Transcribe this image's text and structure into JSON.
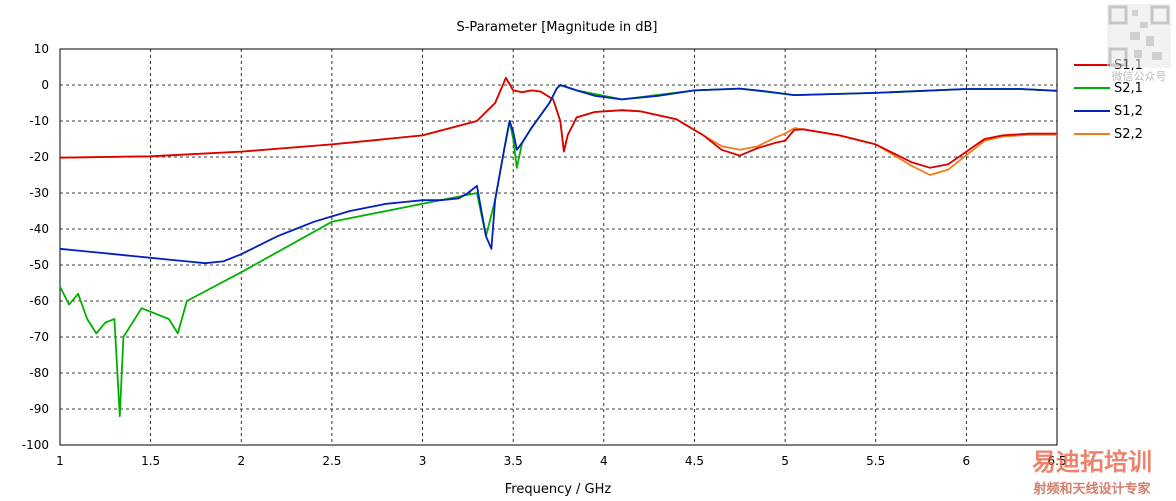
{
  "chart_data": {
    "type": "line",
    "title": "S-Parameter [Magnitude in dB]",
    "xlabel": "Frequency / GHz",
    "ylabel": "",
    "xlim": [
      1,
      6.5
    ],
    "ylim": [
      -100,
      10
    ],
    "x_ticks": [
      "1",
      "1.5",
      "2",
      "2.5",
      "3",
      "3.5",
      "4",
      "4.5",
      "5",
      "5.5",
      "6",
      "6.5"
    ],
    "y_ticks": [
      "10",
      "0",
      "-10",
      "-20",
      "-30",
      "-40",
      "-50",
      "-60",
      "-70",
      "-80",
      "-90",
      "-100"
    ],
    "grid": true,
    "legend_position": "right",
    "series": [
      {
        "name": "S1,1",
        "color": "#dd0000",
        "points": [
          [
            1,
            -20.2
          ],
          [
            1.5,
            -19.8
          ],
          [
            2,
            -18.5
          ],
          [
            2.5,
            -16.5
          ],
          [
            3,
            -14
          ],
          [
            3.3,
            -10
          ],
          [
            3.4,
            -5
          ],
          [
            3.46,
            2
          ],
          [
            3.5,
            -1.5
          ],
          [
            3.55,
            -2
          ],
          [
            3.6,
            -1.5
          ],
          [
            3.65,
            -1.8
          ],
          [
            3.72,
            -4
          ],
          [
            3.76,
            -10
          ],
          [
            3.78,
            -18.5
          ],
          [
            3.8,
            -14
          ],
          [
            3.85,
            -9
          ],
          [
            3.95,
            -7.5
          ],
          [
            4.1,
            -7
          ],
          [
            4.2,
            -7.3
          ],
          [
            4.4,
            -9.5
          ],
          [
            4.55,
            -14
          ],
          [
            4.65,
            -18
          ],
          [
            4.75,
            -19.6
          ],
          [
            4.85,
            -17.5
          ],
          [
            4.95,
            -16
          ],
          [
            5.0,
            -15.5
          ],
          [
            5.05,
            -12.5
          ],
          [
            5.1,
            -12.3
          ],
          [
            5.3,
            -14
          ],
          [
            5.5,
            -16.5
          ],
          [
            5.6,
            -19
          ],
          [
            5.7,
            -21.5
          ],
          [
            5.8,
            -23
          ],
          [
            5.9,
            -22
          ],
          [
            6.0,
            -18.5
          ],
          [
            6.1,
            -15
          ],
          [
            6.2,
            -14
          ],
          [
            6.35,
            -13.5
          ],
          [
            6.5,
            -13.5
          ]
        ]
      },
      {
        "name": "S2,1",
        "color": "#00b000",
        "points": [
          [
            1,
            -56
          ],
          [
            1.05,
            -61
          ],
          [
            1.1,
            -58
          ],
          [
            1.15,
            -65
          ],
          [
            1.2,
            -69
          ],
          [
            1.25,
            -66
          ],
          [
            1.3,
            -65
          ],
          [
            1.33,
            -92
          ],
          [
            1.35,
            -70
          ],
          [
            1.45,
            -62
          ],
          [
            1.6,
            -65
          ],
          [
            1.65,
            -69
          ],
          [
            1.7,
            -60
          ],
          [
            2,
            -52
          ],
          [
            2.5,
            -38
          ],
          [
            3,
            -33
          ],
          [
            3.3,
            -30
          ],
          [
            3.35,
            -42
          ],
          [
            3.4,
            -32
          ],
          [
            3.45,
            -18
          ],
          [
            3.48,
            -10
          ],
          [
            3.5,
            -15
          ],
          [
            3.52,
            -23
          ],
          [
            3.55,
            -16
          ],
          [
            3.6,
            -12
          ],
          [
            3.7,
            -5
          ],
          [
            3.74,
            -1
          ],
          [
            3.76,
            0
          ],
          [
            3.85,
            -1.5
          ],
          [
            4.1,
            -4
          ],
          [
            4.5,
            -1.5
          ],
          [
            4.75,
            -1
          ],
          [
            5.05,
            -2.8
          ],
          [
            5.5,
            -2.2
          ],
          [
            6.0,
            -1.1
          ],
          [
            6.3,
            -1.1
          ],
          [
            6.5,
            -1.6
          ]
        ]
      },
      {
        "name": "S1,2",
        "color": "#0020c0",
        "points": [
          [
            1,
            -45.5
          ],
          [
            1.1,
            -46
          ],
          [
            1.2,
            -46.5
          ],
          [
            1.3,
            -47
          ],
          [
            1.4,
            -47.5
          ],
          [
            1.5,
            -48
          ],
          [
            1.6,
            -48.5
          ],
          [
            1.7,
            -49
          ],
          [
            1.8,
            -49.5
          ],
          [
            1.9,
            -49
          ],
          [
            2,
            -47
          ],
          [
            2.1,
            -44.5
          ],
          [
            2.2,
            -42
          ],
          [
            2.3,
            -40
          ],
          [
            2.4,
            -38
          ],
          [
            2.5,
            -36.5
          ],
          [
            2.6,
            -35
          ],
          [
            2.7,
            -34
          ],
          [
            2.8,
            -33
          ],
          [
            2.9,
            -32.5
          ],
          [
            3.0,
            -32
          ],
          [
            3.1,
            -32
          ],
          [
            3.2,
            -31.5
          ],
          [
            3.25,
            -30
          ],
          [
            3.3,
            -28
          ],
          [
            3.35,
            -42
          ],
          [
            3.38,
            -45.5
          ],
          [
            3.4,
            -32
          ],
          [
            3.45,
            -18
          ],
          [
            3.48,
            -10
          ],
          [
            3.5,
            -13
          ],
          [
            3.52,
            -18
          ],
          [
            3.55,
            -16
          ],
          [
            3.6,
            -12
          ],
          [
            3.7,
            -5
          ],
          [
            3.74,
            -1
          ],
          [
            3.76,
            0
          ],
          [
            3.85,
            -1.5
          ],
          [
            3.95,
            -3
          ],
          [
            4.1,
            -4
          ],
          [
            4.3,
            -3
          ],
          [
            4.5,
            -1.5
          ],
          [
            4.75,
            -1
          ],
          [
            4.9,
            -1.8
          ],
          [
            5.05,
            -2.8
          ],
          [
            5.5,
            -2.2
          ],
          [
            6.0,
            -1.1
          ],
          [
            6.3,
            -1.1
          ],
          [
            6.5,
            -1.6
          ]
        ]
      },
      {
        "name": "S2,2",
        "color": "#f07c1c",
        "points": [
          [
            1,
            -20.2
          ],
          [
            1.5,
            -19.8
          ],
          [
            2,
            -18.5
          ],
          [
            2.5,
            -16.5
          ],
          [
            3,
            -14
          ],
          [
            3.3,
            -10
          ],
          [
            3.4,
            -5
          ],
          [
            3.46,
            2
          ],
          [
            3.5,
            -1.5
          ],
          [
            3.55,
            -2
          ],
          [
            3.6,
            -1.5
          ],
          [
            3.65,
            -1.8
          ],
          [
            3.72,
            -4
          ],
          [
            3.76,
            -10
          ],
          [
            3.78,
            -18.5
          ],
          [
            3.8,
            -14
          ],
          [
            3.85,
            -9
          ],
          [
            3.95,
            -7.5
          ],
          [
            4.1,
            -7
          ],
          [
            4.2,
            -7.3
          ],
          [
            4.4,
            -9.5
          ],
          [
            4.55,
            -14
          ],
          [
            4.65,
            -17
          ],
          [
            4.75,
            -18
          ],
          [
            4.85,
            -17
          ],
          [
            4.95,
            -14.5
          ],
          [
            5.0,
            -13.5
          ],
          [
            5.05,
            -12
          ],
          [
            5.1,
            -12.3
          ],
          [
            5.3,
            -14
          ],
          [
            5.5,
            -16.5
          ],
          [
            5.6,
            -19.5
          ],
          [
            5.7,
            -22.5
          ],
          [
            5.8,
            -25
          ],
          [
            5.9,
            -23.5
          ],
          [
            6.0,
            -19.5
          ],
          [
            6.1,
            -15.5
          ],
          [
            6.2,
            -14.3
          ],
          [
            6.35,
            -13.8
          ],
          [
            6.5,
            -13.8
          ]
        ]
      }
    ]
  },
  "watermark": {
    "qr_caption": "微信公众号",
    "brand": "易迪拓培训",
    "slogan": "射频和天线设计专家"
  }
}
